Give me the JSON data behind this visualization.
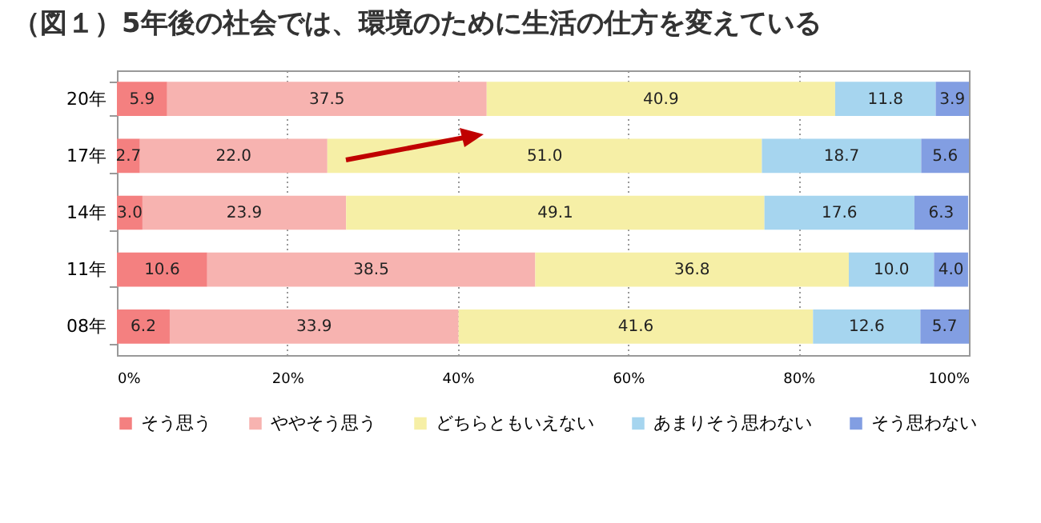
{
  "chart_data": {
    "type": "bar",
    "orientation": "horizontal",
    "stacked": true,
    "title": "（図１）5年後の社会では、環境のために生活の仕方を変えている",
    "categories": [
      "20年",
      "17年",
      "14年",
      "11年",
      "08年"
    ],
    "series": [
      {
        "name": "そう思う",
        "color": "#f48080",
        "values": [
          5.9,
          2.7,
          3.0,
          10.6,
          6.2
        ],
        "value_labels": [
          "5.9",
          "2.7",
          "3.0",
          "10.6",
          "6.2"
        ]
      },
      {
        "name": "ややそう思う",
        "color": "#f7b3b0",
        "values": [
          37.5,
          22.0,
          23.9,
          38.5,
          33.9
        ],
        "value_labels": [
          "37.5",
          "22.0",
          "23.9",
          "38.5",
          "33.9"
        ]
      },
      {
        "name": "どちらともいえない",
        "color": "#f6efa6",
        "values": [
          40.9,
          51.0,
          49.1,
          36.8,
          41.6
        ],
        "value_labels": [
          "40.9",
          "51.0",
          "49.1",
          "36.8",
          "41.6"
        ]
      },
      {
        "name": "あまりそう思わない",
        "color": "#a6d5ef",
        "values": [
          11.8,
          18.7,
          17.6,
          10.0,
          12.6
        ],
        "value_labels": [
          "11.8",
          "18.7",
          "17.6",
          "10.0",
          "12.6"
        ]
      },
      {
        "name": "そう思わない",
        "color": "#829ee2",
        "values": [
          3.9,
          5.6,
          6.3,
          4.0,
          5.7
        ],
        "value_labels": [
          "3.9",
          "5.6",
          "6.3",
          "4.0",
          "5.7"
        ]
      }
    ],
    "xlim": [
      0,
      100
    ],
    "xticks": [
      {
        "value": 0,
        "label": "0%"
      },
      {
        "value": 20,
        "label": "20%"
      },
      {
        "value": 40,
        "label": "40%"
      },
      {
        "value": 60,
        "label": "60%"
      },
      {
        "value": 80,
        "label": "80%"
      },
      {
        "value": 100,
        "label": "100%"
      }
    ],
    "grid": "x",
    "legend": "bottom"
  }
}
